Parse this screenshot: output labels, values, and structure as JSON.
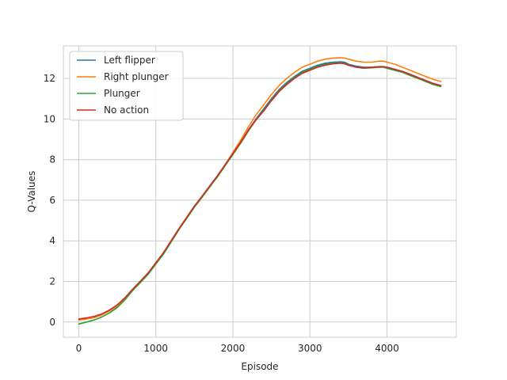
{
  "chart_data": {
    "type": "line",
    "title": "",
    "xlabel": "Episode",
    "ylabel": "Q-Values",
    "xlim": [
      -200,
      4900
    ],
    "ylim": [
      -0.75,
      13.6
    ],
    "xticks": [
      0,
      1000,
      2000,
      3000,
      4000
    ],
    "yticks": [
      0,
      2,
      4,
      6,
      8,
      10,
      12
    ],
    "grid": true,
    "legend": "upper-left",
    "series": [
      {
        "name": "Left flipper",
        "color": "#1f77b4",
        "x": [
          0,
          100,
          200,
          300,
          400,
          500,
          600,
          700,
          800,
          900,
          1000,
          1100,
          1200,
          1300,
          1400,
          1500,
          1600,
          1700,
          1800,
          1900,
          2000,
          2100,
          2200,
          2300,
          2400,
          2500,
          2600,
          2700,
          2800,
          2900,
          3000,
          3100,
          3200,
          3300,
          3400,
          3450,
          3500,
          3600,
          3700,
          3800,
          3900,
          3950,
          4000,
          4100,
          4200,
          4300,
          4400,
          4500,
          4600,
          4700
        ],
        "y": [
          0.1,
          0.15,
          0.22,
          0.35,
          0.55,
          0.8,
          1.15,
          1.6,
          2.0,
          2.4,
          2.9,
          3.4,
          4.0,
          4.6,
          5.15,
          5.7,
          6.2,
          6.7,
          7.2,
          7.75,
          8.3,
          8.85,
          9.45,
          10.0,
          10.5,
          11.0,
          11.45,
          11.8,
          12.1,
          12.35,
          12.5,
          12.65,
          12.75,
          12.8,
          12.82,
          12.8,
          12.7,
          12.6,
          12.55,
          12.55,
          12.58,
          12.58,
          12.55,
          12.45,
          12.35,
          12.2,
          12.05,
          11.9,
          11.75,
          11.65
        ]
      },
      {
        "name": "Right plunger",
        "color": "#ff7f0e",
        "x": [
          0,
          100,
          200,
          300,
          400,
          500,
          600,
          700,
          800,
          900,
          1000,
          1100,
          1200,
          1300,
          1400,
          1500,
          1600,
          1700,
          1800,
          1900,
          2000,
          2100,
          2200,
          2300,
          2400,
          2500,
          2600,
          2700,
          2800,
          2900,
          3000,
          3100,
          3200,
          3300,
          3400,
          3450,
          3500,
          3600,
          3700,
          3800,
          3900,
          3950,
          4000,
          4100,
          4200,
          4300,
          4400,
          4500,
          4600,
          4700
        ],
        "y": [
          0.1,
          0.15,
          0.22,
          0.35,
          0.55,
          0.8,
          1.15,
          1.6,
          2.0,
          2.4,
          2.9,
          3.4,
          4.0,
          4.6,
          5.15,
          5.7,
          6.2,
          6.7,
          7.2,
          7.75,
          8.35,
          8.95,
          9.6,
          10.2,
          10.7,
          11.2,
          11.65,
          12.0,
          12.3,
          12.55,
          12.7,
          12.85,
          12.95,
          13.0,
          13.02,
          13.0,
          12.95,
          12.85,
          12.8,
          12.8,
          12.85,
          12.85,
          12.8,
          12.7,
          12.55,
          12.4,
          12.25,
          12.1,
          11.95,
          11.85
        ]
      },
      {
        "name": "Plunger",
        "color": "#2ca02c",
        "x": [
          0,
          100,
          200,
          300,
          400,
          500,
          600,
          700,
          800,
          900,
          1000,
          1100,
          1200,
          1300,
          1400,
          1500,
          1600,
          1700,
          1800,
          1900,
          2000,
          2100,
          2200,
          2300,
          2400,
          2500,
          2600,
          2700,
          2800,
          2900,
          3000,
          3100,
          3200,
          3300,
          3400,
          3450,
          3500,
          3600,
          3700,
          3800,
          3900,
          3950,
          4000,
          4100,
          4200,
          4300,
          4400,
          4500,
          4600,
          4700
        ],
        "y": [
          -0.1,
          0.0,
          0.1,
          0.25,
          0.45,
          0.72,
          1.1,
          1.55,
          1.95,
          2.35,
          2.85,
          3.35,
          3.95,
          4.55,
          5.1,
          5.65,
          6.15,
          6.65,
          7.15,
          7.7,
          8.25,
          8.8,
          9.4,
          9.95,
          10.45,
          10.95,
          11.4,
          11.75,
          12.05,
          12.3,
          12.45,
          12.6,
          12.7,
          12.75,
          12.77,
          12.75,
          12.65,
          12.55,
          12.5,
          12.52,
          12.55,
          12.55,
          12.5,
          12.4,
          12.3,
          12.15,
          12.0,
          11.85,
          11.7,
          11.6
        ]
      },
      {
        "name": "No action",
        "color": "#d62728",
        "x": [
          0,
          100,
          200,
          300,
          400,
          500,
          600,
          700,
          800,
          900,
          1000,
          1100,
          1200,
          1300,
          1400,
          1500,
          1600,
          1700,
          1800,
          1900,
          2000,
          2100,
          2200,
          2300,
          2400,
          2500,
          2600,
          2700,
          2800,
          2900,
          3000,
          3100,
          3200,
          3300,
          3400,
          3450,
          3500,
          3600,
          3700,
          3800,
          3900,
          3950,
          4000,
          4100,
          4200,
          4300,
          4400,
          4500,
          4600,
          4700
        ],
        "y": [
          0.15,
          0.2,
          0.28,
          0.4,
          0.6,
          0.85,
          1.2,
          1.62,
          2.02,
          2.42,
          2.92,
          3.42,
          4.02,
          4.6,
          5.15,
          5.7,
          6.2,
          6.7,
          7.2,
          7.75,
          8.3,
          8.85,
          9.45,
          9.95,
          10.4,
          10.9,
          11.35,
          11.7,
          12.0,
          12.25,
          12.4,
          12.55,
          12.65,
          12.72,
          12.75,
          12.72,
          12.65,
          12.55,
          12.52,
          12.55,
          12.58,
          12.58,
          12.55,
          12.45,
          12.35,
          12.2,
          12.05,
          11.9,
          11.75,
          11.65
        ]
      }
    ]
  }
}
